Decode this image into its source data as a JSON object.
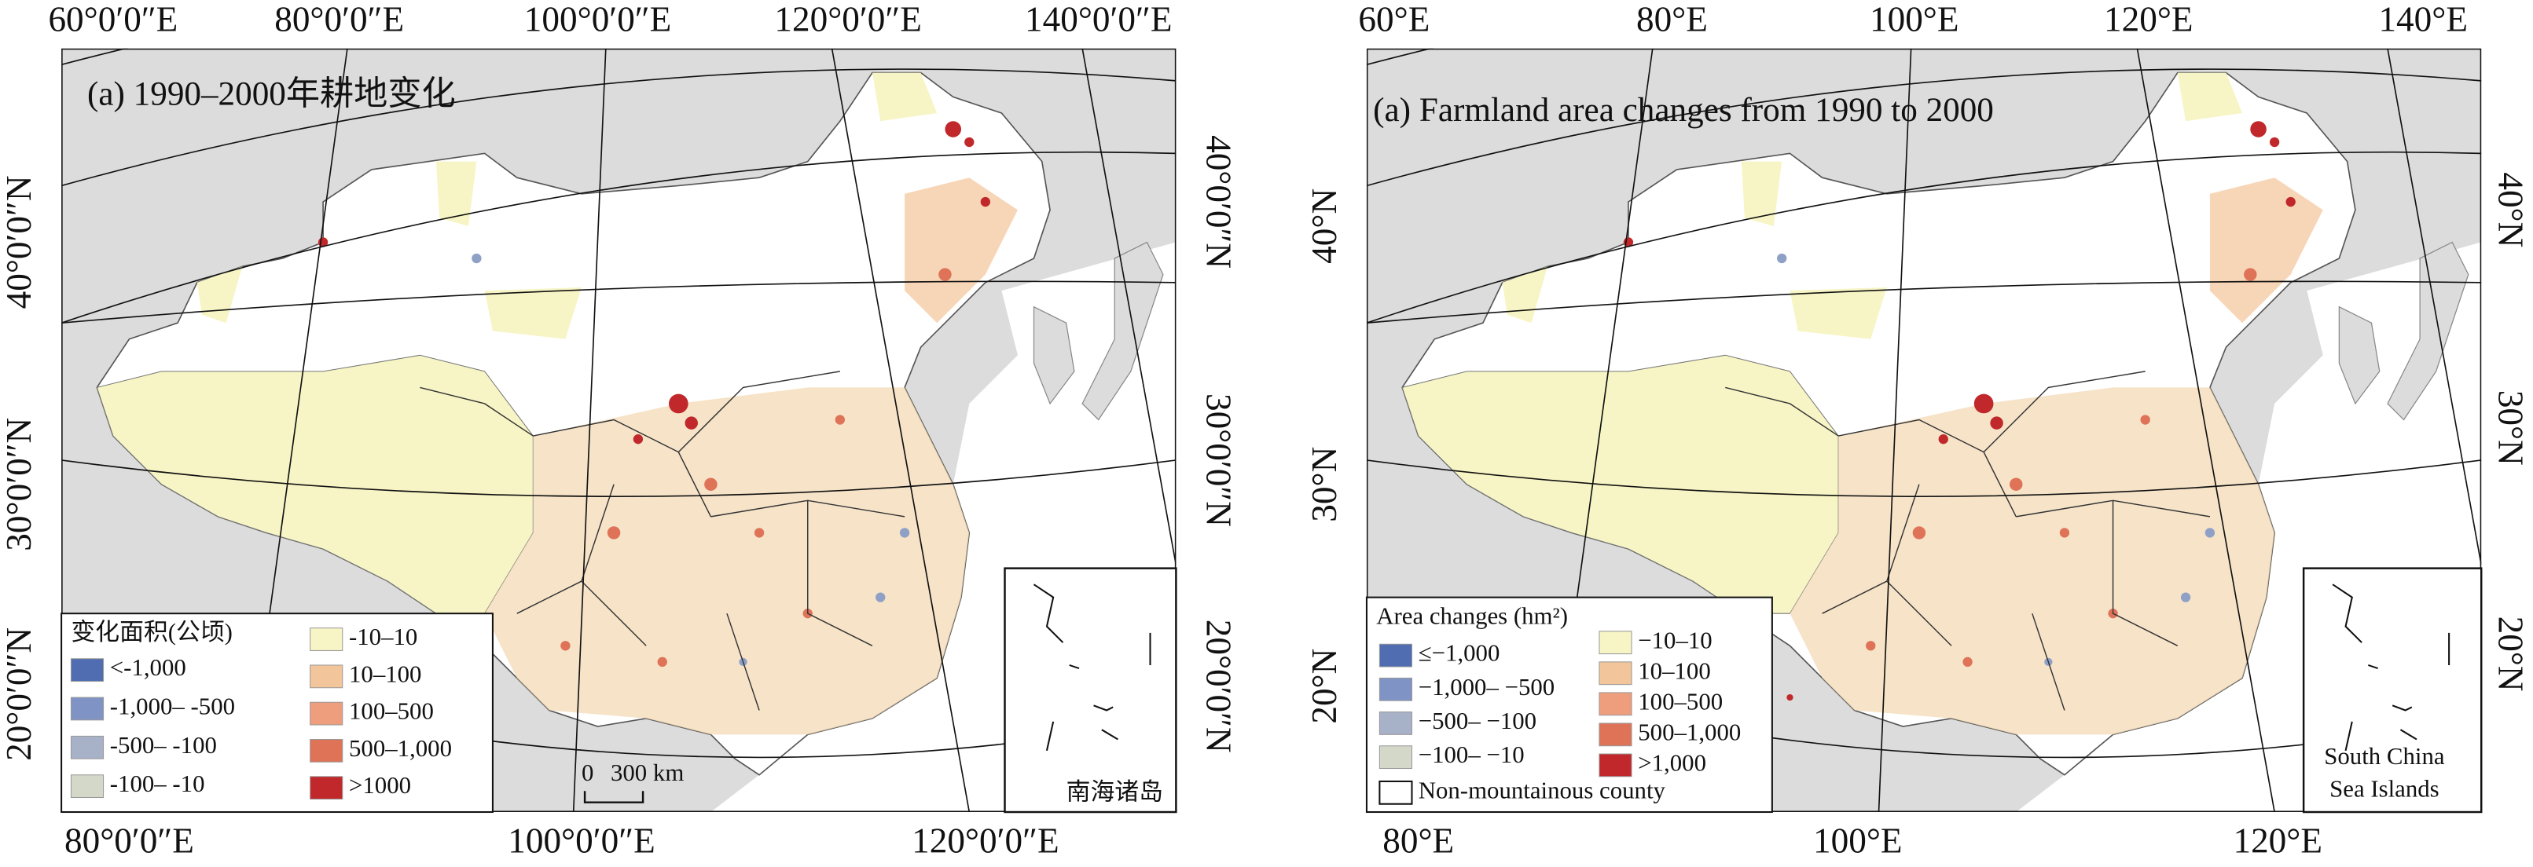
{
  "panels": [
    {
      "title": "(a) 1990–2000年耕地变化",
      "top_labels": [
        "60°0′0″E",
        "80°0′0″E",
        "100°0′0″E",
        "120°0′0″E",
        "140°0′0″E"
      ],
      "left_labels": [
        "40°0′0″N",
        "30°0′0″N",
        "20°0′0″N"
      ],
      "right_labels": [
        "40°0′0″N",
        "30°0′0″N",
        "20°0′0″N"
      ],
      "bottom_labels": [
        "80°0′0″E",
        "100°0′0″E",
        "120°0′0″E"
      ],
      "legend": {
        "title": "变化面积(公顷)",
        "items": [
          {
            "label": "<-1,000",
            "color": "#4f6db0"
          },
          {
            "label": "-1,000– -500",
            "color": "#7f93c4"
          },
          {
            "label": "-500– -100",
            "color": "#a7b1c7"
          },
          {
            "label": "-100– -10",
            "color": "#d3d8c8"
          },
          {
            "label": "-10–10",
            "color": "#f7f5c5"
          },
          {
            "label": "10–100",
            "color": "#f3c59a"
          },
          {
            "label": "100–500",
            "color": "#ee9e7c"
          },
          {
            "label": "500–1,000",
            "color": "#de7358"
          },
          {
            "label": ">1000",
            "color": "#c0282b"
          }
        ]
      },
      "scale_bar": [
        "0",
        "300 km"
      ],
      "inset_label": [
        "南海诸岛"
      ]
    },
    {
      "title": "(a) Farmland area changes from 1990 to 2000",
      "top_labels": [
        "60°E",
        "80°E",
        "100°E",
        "120°E",
        "140°E"
      ],
      "left_labels": [
        "40°N",
        "30°N",
        "20°N"
      ],
      "right_labels": [
        "40°N",
        "30°N",
        "20°N"
      ],
      "bottom_labels": [
        "80°E",
        "100°E",
        "120°E"
      ],
      "legend": {
        "title": "Area changes (hm²)",
        "items": [
          {
            "label": "≤−1,000",
            "color": "#4f6db0"
          },
          {
            "label": "−1,000– −500",
            "color": "#7f93c4"
          },
          {
            "label": "−500– −100",
            "color": "#a7b1c7"
          },
          {
            "label": "−100– −10",
            "color": "#d3d8c8"
          },
          {
            "label": "−10–10",
            "color": "#f7f5c5"
          },
          {
            "label": "10–100",
            "color": "#f3c59a"
          },
          {
            "label": "100–500",
            "color": "#ee9e7c"
          },
          {
            "label": "500–1,000",
            "color": "#de7358"
          },
          {
            "label": ">1,000",
            "color": "#c0282b"
          }
        ],
        "outline_item": "Non-mountainous county"
      },
      "inset_label": [
        "South China",
        "Sea Islands"
      ]
    }
  ]
}
